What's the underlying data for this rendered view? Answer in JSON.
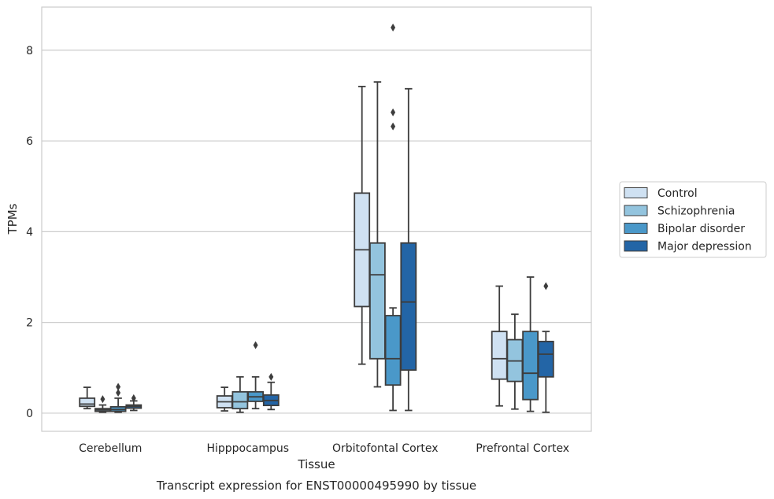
{
  "chart_data": {
    "type": "box",
    "xlabel": "Tissue",
    "ylabel": "TPMs",
    "caption": "Transcript expression for ENST00000495990 by tissue",
    "categories": [
      "Cerebellum",
      "Hipppocampus",
      "Orbitofontal Cortex",
      "Prefrontal Cortex"
    ],
    "ylim": [
      -0.4,
      8.95
    ],
    "yticks": [
      0,
      2,
      4,
      6,
      8
    ],
    "grid": "horizontal",
    "legend_position": "right",
    "series": [
      {
        "name": "Control",
        "color": "#cfe1f2",
        "boxes": [
          {
            "whislo": 0.1,
            "q1": 0.15,
            "med": 0.2,
            "q3": 0.33,
            "whishi": 0.57,
            "fliers": []
          },
          {
            "whislo": 0.05,
            "q1": 0.12,
            "med": 0.25,
            "q3": 0.38,
            "whishi": 0.57,
            "fliers": []
          },
          {
            "whislo": 1.08,
            "q1": 2.35,
            "med": 3.6,
            "q3": 4.85,
            "whishi": 7.2,
            "fliers": []
          },
          {
            "whislo": 0.16,
            "q1": 0.75,
            "med": 1.2,
            "q3": 1.8,
            "whishi": 2.8,
            "fliers": []
          }
        ]
      },
      {
        "name": "Schizophrenia",
        "color": "#93c4de",
        "boxes": [
          {
            "whislo": 0.02,
            "q1": 0.04,
            "med": 0.07,
            "q3": 0.1,
            "whishi": 0.18,
            "fliers": [
              0.31
            ]
          },
          {
            "whislo": 0.02,
            "q1": 0.1,
            "med": 0.25,
            "q3": 0.47,
            "whishi": 0.8,
            "fliers": []
          },
          {
            "whislo": 0.58,
            "q1": 1.2,
            "med": 3.05,
            "q3": 3.75,
            "whishi": 7.3,
            "fliers": []
          },
          {
            "whislo": 0.09,
            "q1": 0.7,
            "med": 1.15,
            "q3": 1.62,
            "whishi": 2.18,
            "fliers": []
          }
        ]
      },
      {
        "name": "Bipolar disorder",
        "color": "#4a98c9",
        "boxes": [
          {
            "whislo": 0.02,
            "q1": 0.04,
            "med": 0.08,
            "q3": 0.14,
            "whishi": 0.33,
            "fliers": [
              0.45,
              0.58
            ]
          },
          {
            "whislo": 0.1,
            "q1": 0.26,
            "med": 0.36,
            "q3": 0.47,
            "whishi": 0.8,
            "fliers": [
              1.5
            ]
          },
          {
            "whislo": 0.06,
            "q1": 0.62,
            "med": 1.2,
            "q3": 2.15,
            "whishi": 2.32,
            "fliers": [
              6.32,
              6.63,
              8.5
            ]
          },
          {
            "whislo": 0.04,
            "q1": 0.3,
            "med": 0.88,
            "q3": 1.8,
            "whishi": 3.0,
            "fliers": []
          }
        ]
      },
      {
        "name": "Major depression",
        "color": "#2365a6",
        "boxes": [
          {
            "whislo": 0.06,
            "q1": 0.11,
            "med": 0.15,
            "q3": 0.18,
            "whishi": 0.27,
            "fliers": [
              0.33
            ]
          },
          {
            "whislo": 0.08,
            "q1": 0.17,
            "med": 0.28,
            "q3": 0.4,
            "whishi": 0.68,
            "fliers": [
              0.8
            ]
          },
          {
            "whislo": 0.06,
            "q1": 0.95,
            "med": 2.45,
            "q3": 3.75,
            "whishi": 7.15,
            "fliers": []
          },
          {
            "whislo": 0.02,
            "q1": 0.8,
            "med": 1.3,
            "q3": 1.58,
            "whishi": 1.8,
            "fliers": [
              2.8
            ]
          }
        ]
      }
    ]
  }
}
